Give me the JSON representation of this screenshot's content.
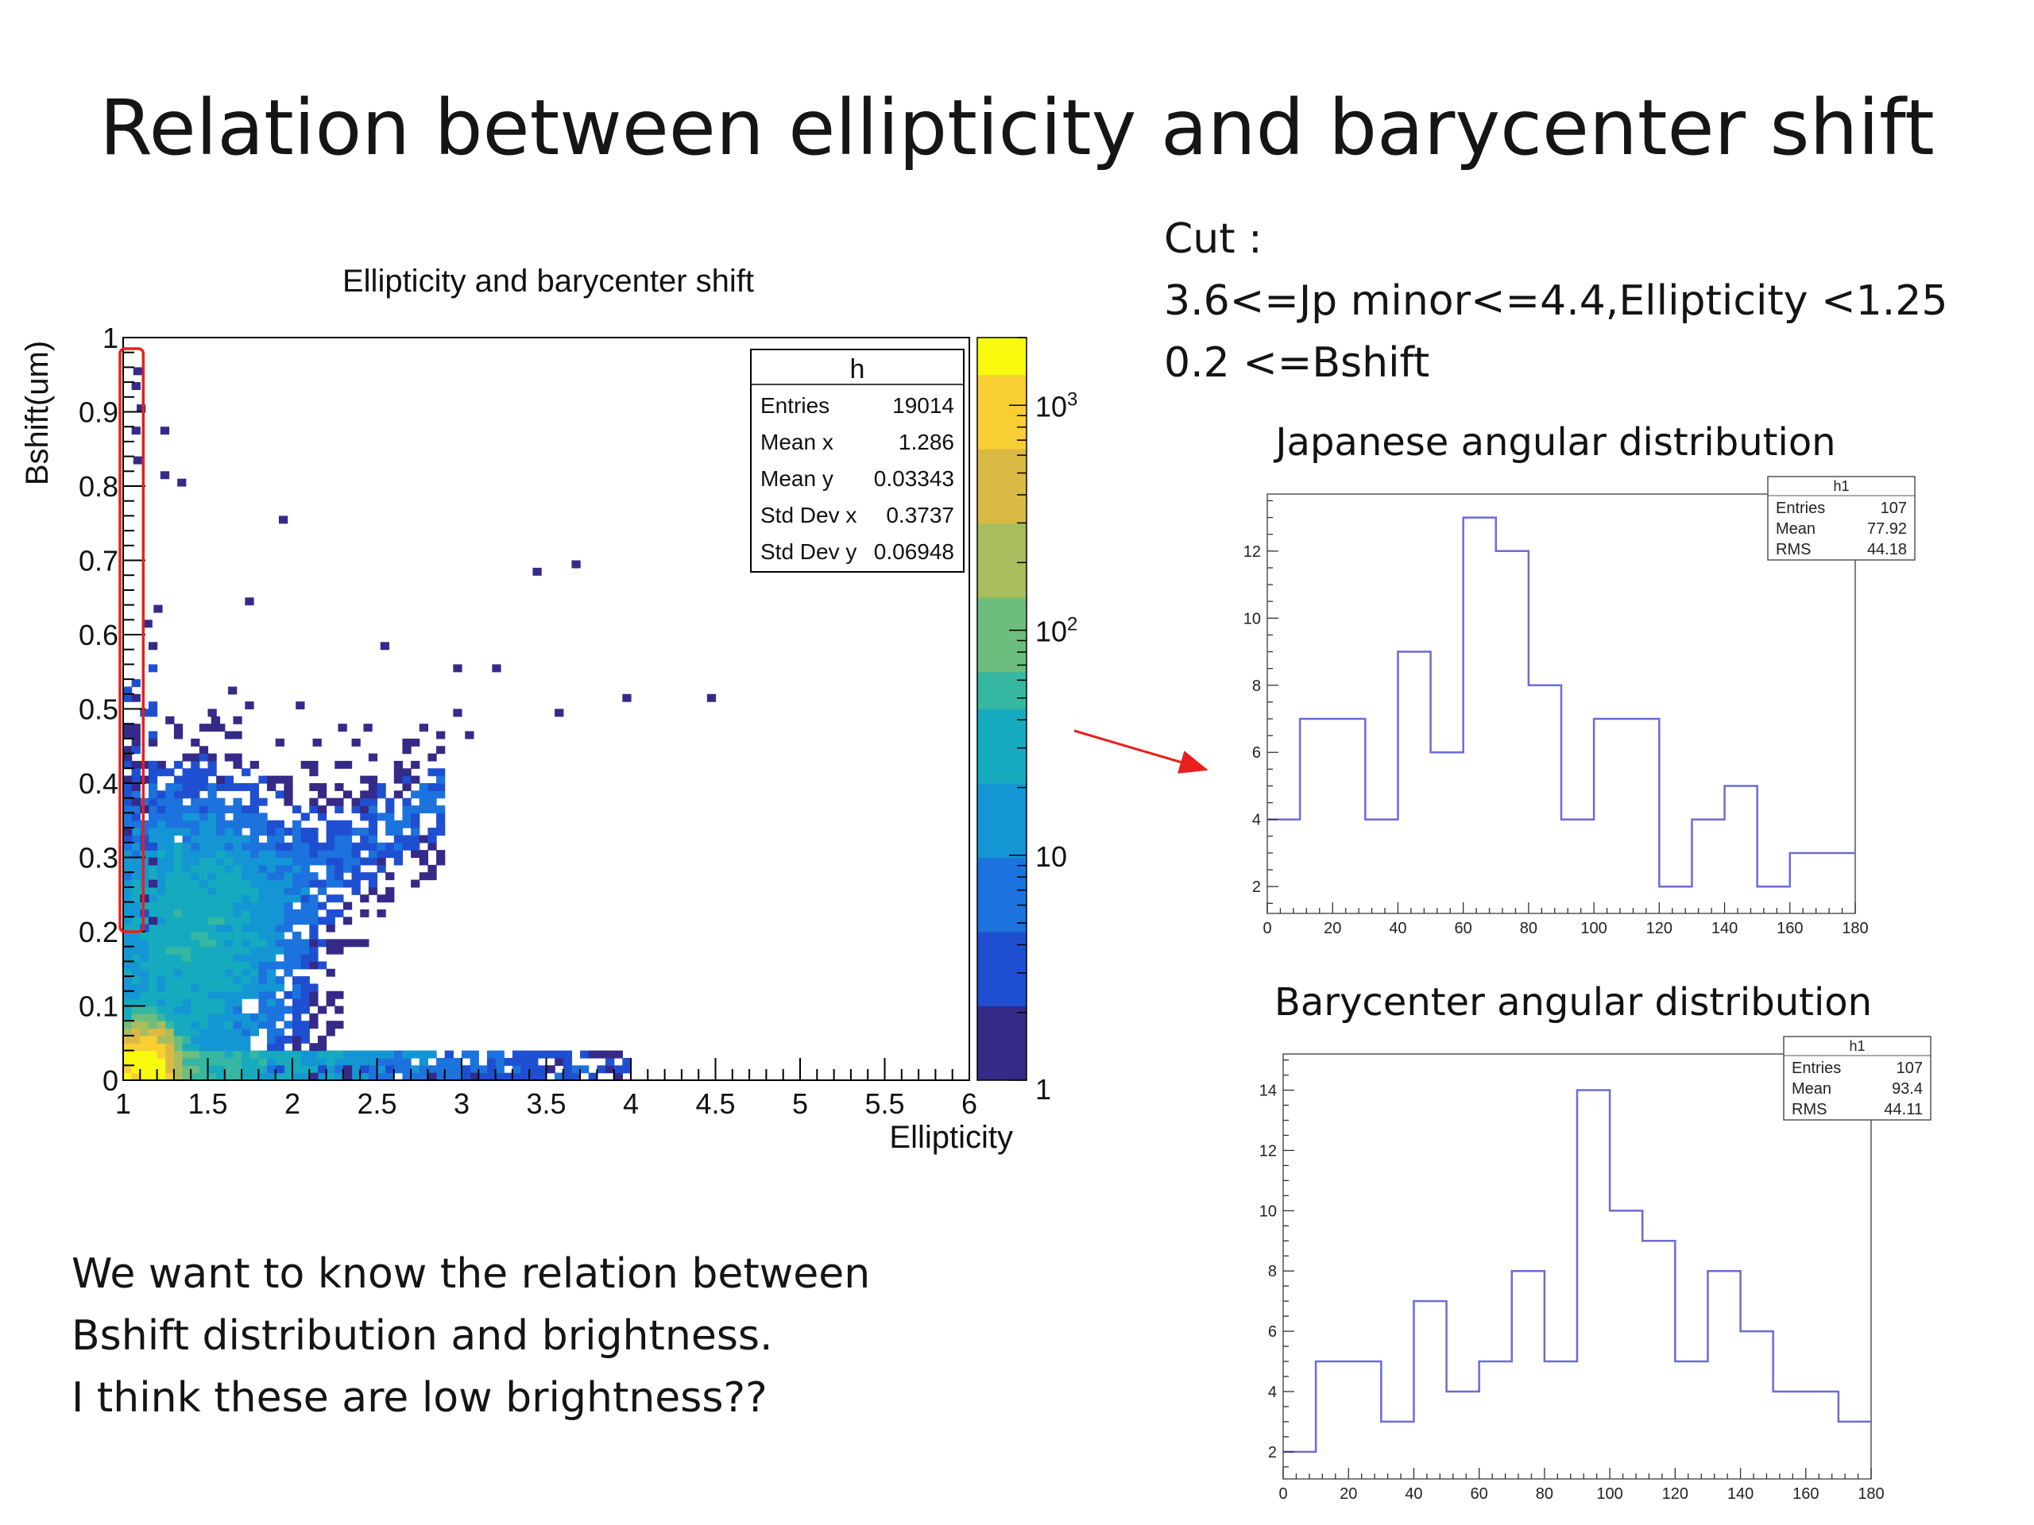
{
  "slide": {
    "title": "Relation between ellipticity and barycenter shift",
    "cut_lines": [
      "Cut :",
      "3.6<=Jp minor<=4.4,Ellipticity <1.25",
      "0.2 <=Bshift"
    ],
    "note_lines": [
      "We want to know the relation between",
      "Bshift distribution and brightness.",
      "I think these are low brightness??"
    ],
    "japanese_heading": "Japanese angular distribution",
    "barycenter_heading": "Barycenter angular distribution",
    "colors": {
      "highlight": "#e8201c",
      "hist_line": "#6b6bd6",
      "frame": "#000000"
    }
  },
  "chart_data": [
    {
      "type": "heatmap",
      "title": "Ellipticity and barycenter shift",
      "xlabel": "Ellipticity",
      "ylabel": "Bshift(um)",
      "xlim": [
        1,
        6
      ],
      "ylim": [
        0,
        1
      ],
      "x_ticks": [
        "1",
        "1.5",
        "2",
        "2.5",
        "3",
        "3.5",
        "4",
        "4.5",
        "5",
        "5.5",
        "6"
      ],
      "y_ticks": [
        "0",
        "0.1",
        "0.2",
        "0.3",
        "0.4",
        "0.5",
        "0.6",
        "0.7",
        "0.8",
        "0.9",
        "1"
      ],
      "color_scale": "log",
      "zlim": [
        1,
        2000
      ],
      "z_ticks": [
        "1",
        "10",
        "10^2",
        "10^3"
      ],
      "stats": {
        "name": "h",
        "rows": [
          {
            "label": "Entries",
            "value": "19014"
          },
          {
            "label": "Mean x",
            "value": "1.286"
          },
          {
            "label": "Mean y",
            "value": "0.03343"
          },
          {
            "label": "Std Dev x",
            "value": "0.3737"
          },
          {
            "label": "Std Dev y",
            "value": "0.06948"
          }
        ]
      },
      "highlight_region": {
        "x": [
          1.0,
          1.1
        ],
        "y": [
          0.2,
          1.0
        ]
      },
      "points": [
        [
          1.06,
          0.95
        ],
        [
          1.22,
          0.87
        ],
        [
          1.22,
          0.81
        ],
        [
          1.32,
          0.8
        ],
        [
          1.92,
          0.75
        ],
        [
          1.72,
          0.64
        ],
        [
          2.52,
          0.58
        ],
        [
          3.42,
          0.68
        ],
        [
          3.65,
          0.69
        ],
        [
          2.95,
          0.55
        ],
        [
          3.18,
          0.55
        ],
        [
          3.95,
          0.51
        ],
        [
          4.45,
          0.51
        ],
        [
          1.62,
          0.52
        ],
        [
          1.72,
          0.5
        ],
        [
          1.52,
          0.48
        ],
        [
          2.02,
          0.5
        ],
        [
          2.27,
          0.47
        ],
        [
          2.42,
          0.47
        ],
        [
          2.95,
          0.49
        ],
        [
          3.55,
          0.49
        ],
        [
          1.12,
          0.61
        ],
        [
          1.18,
          0.63
        ],
        [
          1.15,
          0.58
        ],
        [
          1.45,
          0.47
        ],
        [
          2.12,
          0.45
        ],
        [
          2.35,
          0.45
        ],
        [
          3.02,
          0.46
        ],
        [
          1.05,
          0.93
        ],
        [
          1.08,
          0.9
        ],
        [
          1.05,
          0.87
        ],
        [
          1.06,
          0.83
        ]
      ]
    },
    {
      "type": "bar",
      "title": "Japanese angular distribution",
      "name": "h1",
      "bin_edges": [
        0,
        10,
        20,
        30,
        40,
        50,
        60,
        70,
        80,
        90,
        100,
        110,
        120,
        130,
        140,
        150,
        160,
        170,
        180
      ],
      "values": [
        4,
        7,
        7,
        4,
        9,
        6,
        13,
        12,
        8,
        4,
        7,
        7,
        2,
        4,
        5,
        2,
        3,
        3
      ],
      "xlim": [
        0,
        180
      ],
      "ylim": [
        1.2,
        13.7
      ],
      "x_ticks": [
        "0",
        "20",
        "40",
        "60",
        "80",
        "100",
        "120",
        "140",
        "160",
        "180"
      ],
      "y_ticks": [
        "2",
        "4",
        "6",
        "8",
        "10",
        "12"
      ],
      "stats": [
        {
          "label": "Entries",
          "value": "107"
        },
        {
          "label": "Mean",
          "value": "77.92"
        },
        {
          "label": "RMS",
          "value": "44.18"
        }
      ]
    },
    {
      "type": "bar",
      "title": "Barycenter angular distribution",
      "name": "h1",
      "bin_edges": [
        0,
        10,
        20,
        30,
        40,
        50,
        60,
        70,
        80,
        90,
        100,
        110,
        120,
        130,
        140,
        150,
        160,
        170,
        180
      ],
      "values": [
        2,
        5,
        5,
        3,
        7,
        4,
        5,
        8,
        5,
        14,
        10,
        9,
        5,
        8,
        6,
        4,
        4,
        3
      ],
      "xlim": [
        0,
        180
      ],
      "ylim": [
        1.1,
        15.2
      ],
      "x_ticks": [
        "0",
        "20",
        "40",
        "60",
        "80",
        "100",
        "120",
        "140",
        "160",
        "180"
      ],
      "y_ticks": [
        "2",
        "4",
        "6",
        "8",
        "10",
        "12",
        "14"
      ],
      "stats": [
        {
          "label": "Entries",
          "value": "107"
        },
        {
          "label": "Mean",
          "value": "93.4"
        },
        {
          "label": "RMS",
          "value": "44.11"
        }
      ]
    }
  ]
}
